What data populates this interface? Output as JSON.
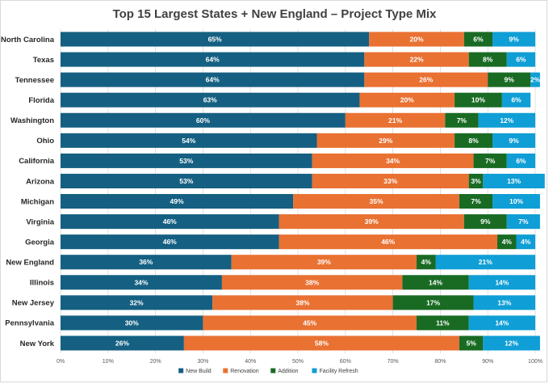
{
  "chart_data": {
    "type": "bar",
    "orientation": "horizontal",
    "stacked": true,
    "title": "Top 15 Largest States + New England – Project Type Mix",
    "categories": [
      "North Carolina",
      "Texas",
      "Tennessee",
      "Florida",
      "Washington",
      "Ohio",
      "California",
      "Arizona",
      "Michigan",
      "Virginia",
      "Georgia",
      "New England",
      "Illinois",
      "New Jersey",
      "Pennsylvania",
      "New York"
    ],
    "series": [
      {
        "name": "New Build",
        "color": "#156082",
        "values": [
          65,
          64,
          64,
          63,
          60,
          54,
          53,
          53,
          49,
          46,
          46,
          36,
          34,
          32,
          30,
          26
        ]
      },
      {
        "name": "Renovation",
        "color": "#E97132",
        "values": [
          20,
          22,
          26,
          20,
          21,
          29,
          34,
          33,
          35,
          39,
          46,
          39,
          38,
          38,
          45,
          58
        ]
      },
      {
        "name": "Addition",
        "color": "#196B24",
        "values": [
          6,
          8,
          9,
          10,
          7,
          8,
          7,
          3,
          7,
          9,
          4,
          4,
          14,
          17,
          11,
          5
        ]
      },
      {
        "name": "Facility Refresh",
        "color": "#0F9ED5",
        "values": [
          9,
          6,
          2,
          6,
          12,
          9,
          6,
          13,
          10,
          7,
          4,
          21,
          14,
          13,
          14,
          12
        ]
      }
    ],
    "xlim": [
      0,
      100
    ],
    "xticks": [
      "0%",
      "10%",
      "20%",
      "30%",
      "40%",
      "50%",
      "60%",
      "70%",
      "80%",
      "90%",
      "100%"
    ],
    "legend": "bottom",
    "grid": true
  }
}
